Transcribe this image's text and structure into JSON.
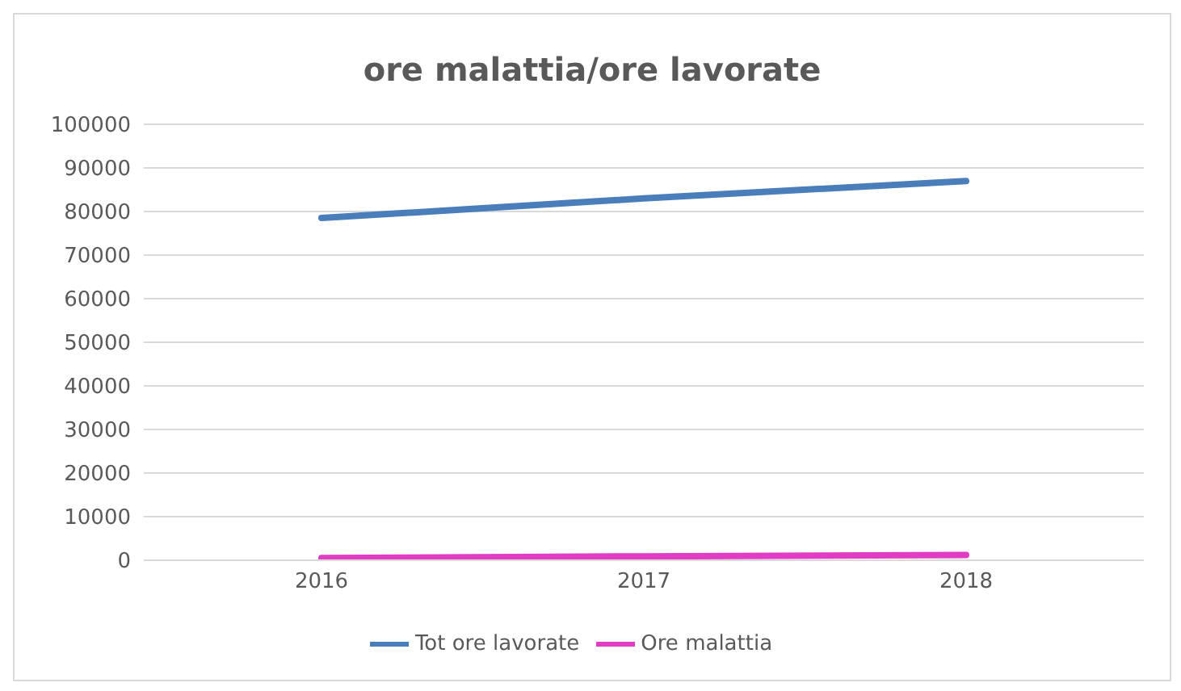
{
  "chart_data": {
    "type": "line",
    "title": "ore malattia/ore lavorate",
    "categories": [
      "2016",
      "2017",
      "2018"
    ],
    "series": [
      {
        "name": "Tot ore lavorate",
        "color": "#4a7ebb",
        "values": [
          78500,
          83000,
          87000
        ]
      },
      {
        "name": "Ore malattia",
        "color": "#e03cc4",
        "values": [
          500,
          900,
          1200
        ]
      }
    ],
    "ylim": [
      0,
      100000
    ],
    "yticks": [
      0,
      10000,
      20000,
      30000,
      40000,
      50000,
      60000,
      70000,
      80000,
      90000,
      100000
    ],
    "grid": "y",
    "legend": "bottom",
    "marker": "none",
    "line_style": "solid"
  }
}
